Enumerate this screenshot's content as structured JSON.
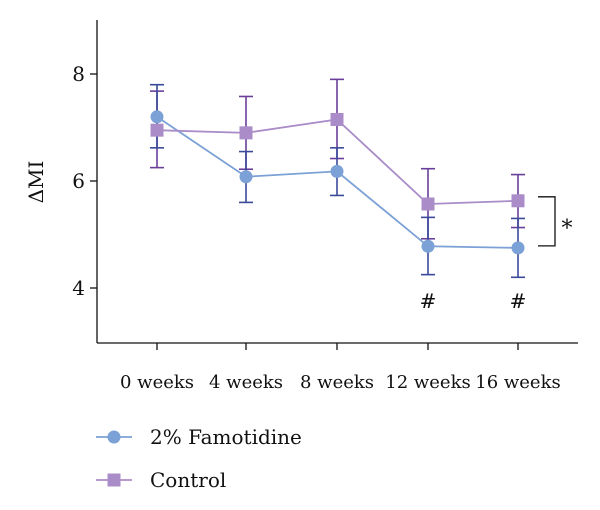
{
  "chart_data": {
    "type": "line",
    "categories": [
      "0 weeks",
      "4 weeks",
      "8 weeks",
      "12 weeks",
      "16 weeks"
    ],
    "ylabel": "ΔMI",
    "ylim": [
      3,
      9
    ],
    "yticks": [
      4,
      6,
      8
    ],
    "grid": false,
    "legend_position": "bottom-left",
    "series": [
      {
        "name": "2% Famotidine",
        "values": [
          7.2,
          6.08,
          6.18,
          4.78,
          4.75
        ],
        "err_upper": [
          7.8,
          6.55,
          6.62,
          5.32,
          5.3
        ],
        "err_lower": [
          6.62,
          5.6,
          5.73,
          4.25,
          4.2
        ],
        "color": "#7ba1d6",
        "marker": "circle",
        "error_color": "#3a4a9a"
      },
      {
        "name": "Control",
        "values": [
          6.95,
          6.9,
          7.15,
          5.57,
          5.63
        ],
        "err_upper": [
          7.68,
          7.58,
          7.9,
          6.23,
          6.12
        ],
        "err_lower": [
          6.25,
          6.22,
          6.42,
          4.92,
          5.13
        ],
        "color": "#a98cc8",
        "marker": "square",
        "error_color": "#6a3f9a"
      }
    ],
    "annotations": {
      "point_marks": [
        {
          "category": "12 weeks",
          "text": "#"
        },
        {
          "category": "16 weeks",
          "text": "#"
        }
      ],
      "bracket": {
        "category": "16 weeks",
        "from": 5.63,
        "to": 4.75,
        "text": "*"
      }
    }
  }
}
